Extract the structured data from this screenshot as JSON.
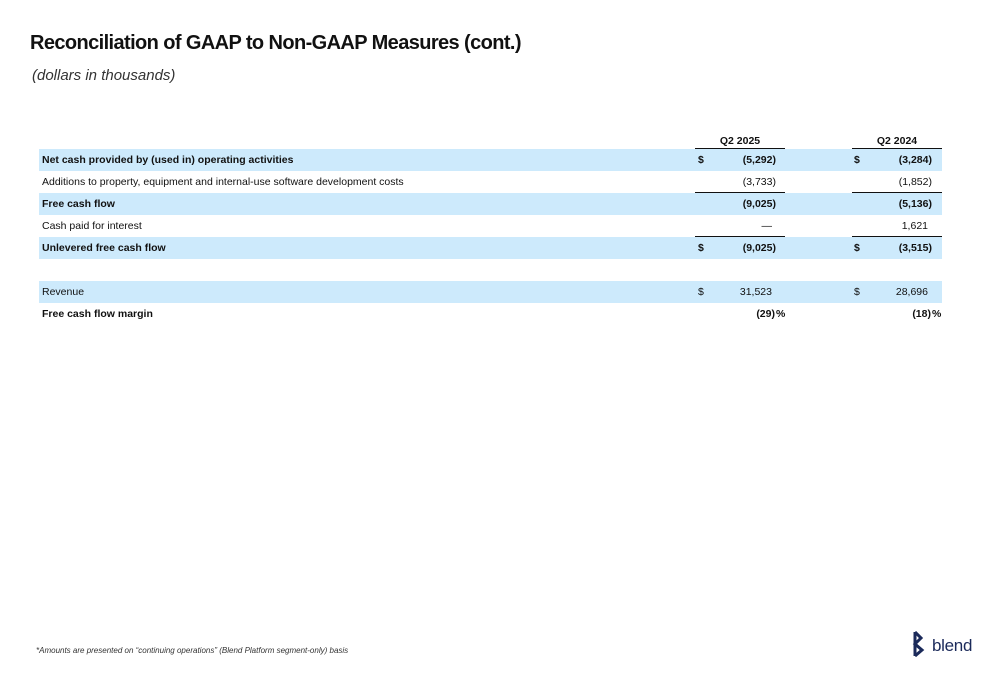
{
  "title": "Reconciliation of GAAP to Non-GAAP Measures (cont.)",
  "subtitle": "(dollars in thousands)",
  "columns": [
    "Q2 2025",
    "Q2 2024"
  ],
  "rows": [
    {
      "label": "Net cash provided by (used in) operating activities",
      "cur1": "$",
      "v1": "(5,292)",
      "cur2": "$",
      "v2": "(3,284)"
    },
    {
      "label": "Additions to property, equipment and internal-use software development costs",
      "v1": "(3,733)",
      "v2": "(1,852)"
    },
    {
      "label": "Free cash flow",
      "v1": "(9,025)",
      "v2": "(5,136)"
    },
    {
      "label": "Cash paid for interest",
      "v1": "—",
      "v2": "1,621"
    },
    {
      "label": "Unlevered free cash flow",
      "cur1": "$",
      "v1": "(9,025)",
      "cur2": "$",
      "v2": "(3,515)"
    },
    {
      "label": "Revenue",
      "cur1": "$",
      "v1": "31,523",
      "cur2": "$",
      "v2": "28,696"
    },
    {
      "label": "Free cash flow margin",
      "v1": "(29)",
      "s1": "%",
      "v2": "(18)",
      "s2": "%"
    }
  ],
  "footnote": "*Amounts are presented on “continuing operations” (Blend Platform segment-only) basis",
  "logo": {
    "text": "blend",
    "icon": "blend-logo-icon",
    "color": "#1b2a5a"
  },
  "colors": {
    "row_shade": "#cdeafc",
    "text": "#111111"
  }
}
